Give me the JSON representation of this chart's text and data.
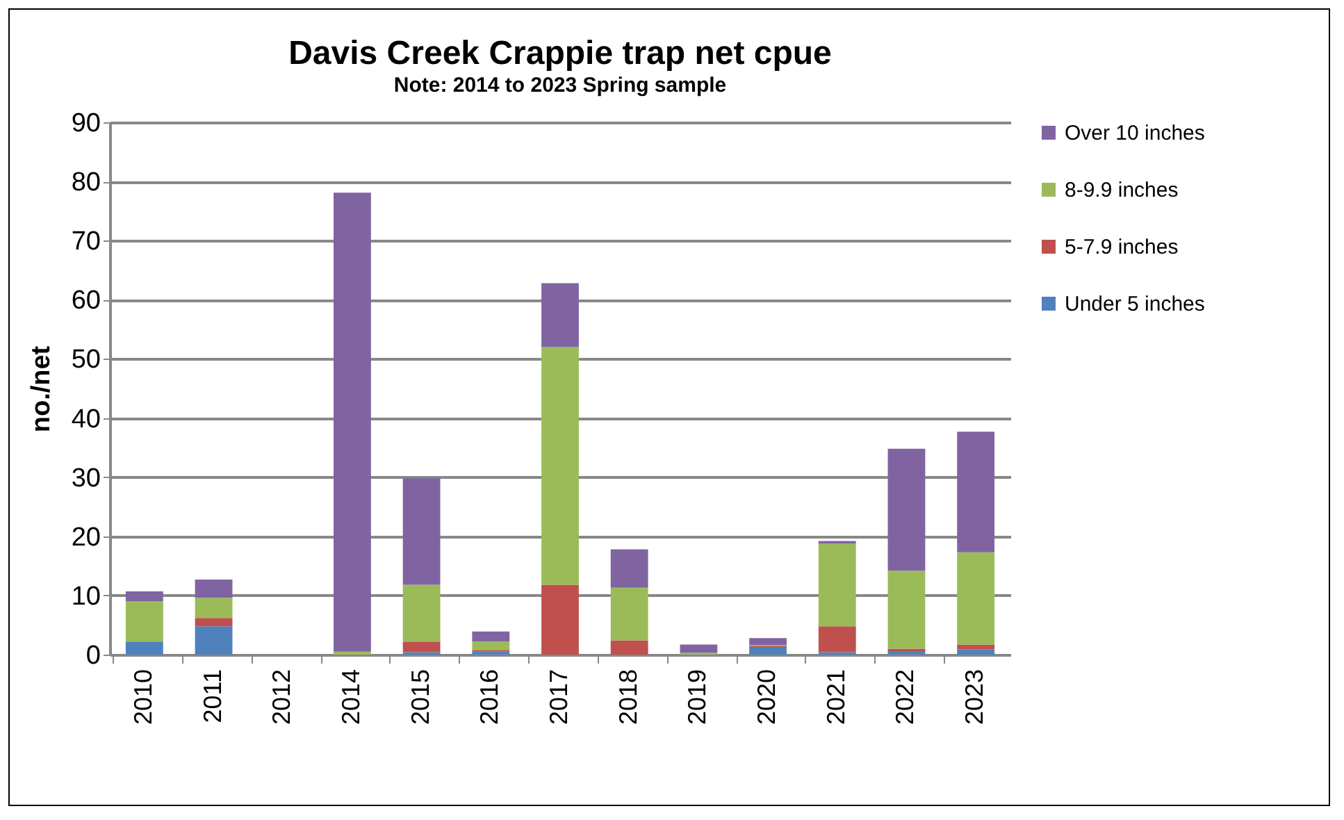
{
  "chart_data": {
    "type": "bar",
    "title": "Davis Creek Crappie trap net cpue",
    "subtitle": "Note: 2014 to 2023 Spring sample",
    "ylabel": "no./net",
    "categories": [
      "2010",
      "2011",
      "2012",
      "2014",
      "2015",
      "2016",
      "2017",
      "2018",
      "2019",
      "2020",
      "2021",
      "2022",
      "2023"
    ],
    "stacked": true,
    "ylim": [
      0,
      90
    ],
    "yticks": [
      0,
      10,
      20,
      30,
      40,
      50,
      60,
      70,
      80,
      90
    ],
    "grid": "y",
    "legend": "right",
    "series": [
      {
        "name": "Under 5 inches",
        "color": "#4f81bd",
        "values": [
          2.2,
          4.8,
          0,
          0,
          0.4,
          0.5,
          0,
          0,
          0,
          1.3,
          0.4,
          0.6,
          0.9
        ]
      },
      {
        "name": "5-7.9 inches",
        "color": "#c0504d",
        "values": [
          0,
          1.4,
          0,
          0,
          1.8,
          0.3,
          11.8,
          2.4,
          null,
          0.1,
          4.4,
          0.4,
          0.8
        ]
      },
      {
        "name": "8-9.9 inches",
        "color": "#9bbb59",
        "values": [
          6.8,
          3.4,
          0,
          0.5,
          9.6,
          1.4,
          40.2,
          8.9,
          0.3,
          0.2,
          14,
          13.2,
          15.6
        ]
      },
      {
        "name": "Over 10 inches",
        "color": "#8064a2",
        "values": [
          1.7,
          3.1,
          0,
          77.6,
          18,
          1.7,
          10.8,
          6.5,
          1.4,
          1.2,
          0.4,
          20.6,
          20.4
        ]
      }
    ]
  }
}
